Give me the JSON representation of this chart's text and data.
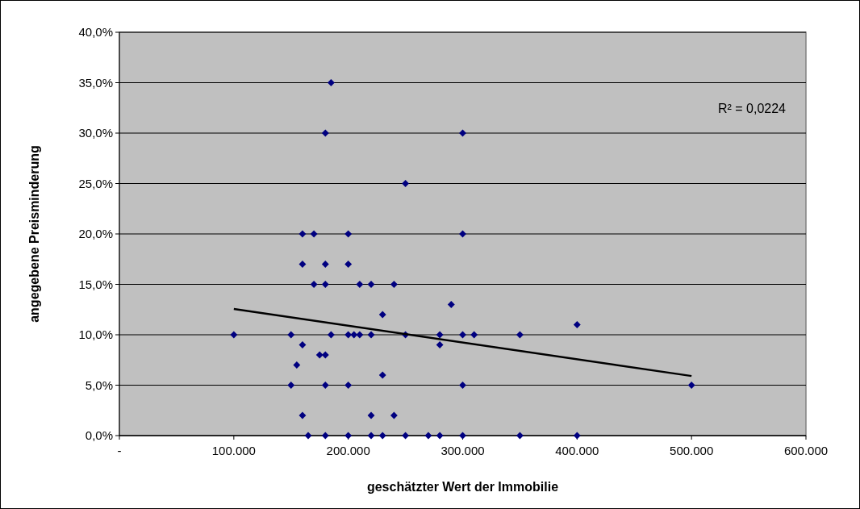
{
  "chart_data": {
    "type": "scatter",
    "xlabel": "geschätzter Wert der Immobilie",
    "ylabel": "angegebene Preisminderung",
    "xlim": [
      0,
      600000
    ],
    "xticks": [
      {
        "value": 0,
        "label": "-"
      },
      {
        "value": 100000,
        "label": "100.000"
      },
      {
        "value": 200000,
        "label": "200.000"
      },
      {
        "value": 300000,
        "label": "300.000"
      },
      {
        "value": 400000,
        "label": "400.000"
      },
      {
        "value": 500000,
        "label": "500.000"
      },
      {
        "value": 600000,
        "label": "600.000"
      }
    ],
    "ylim": [
      0,
      40
    ],
    "yticks": [
      {
        "value": 0,
        "label": "0,0%"
      },
      {
        "value": 5,
        "label": "5,0%"
      },
      {
        "value": 10,
        "label": "10,0%"
      },
      {
        "value": 15,
        "label": "15,0%"
      },
      {
        "value": 20,
        "label": "20,0%"
      },
      {
        "value": 25,
        "label": "25,0%"
      },
      {
        "value": 30,
        "label": "30,0%"
      },
      {
        "value": 35,
        "label": "35,0%"
      },
      {
        "value": 40,
        "label": "40,0%"
      }
    ],
    "grid": "y",
    "marker": "diamond",
    "series": [
      {
        "color": "#000080",
        "x": [
          185000,
          180000,
          300000,
          250000,
          160000,
          170000,
          200000,
          300000,
          160000,
          180000,
          200000,
          170000,
          180000,
          210000,
          220000,
          240000,
          290000,
          230000,
          100000,
          150000,
          185000,
          200000,
          205000,
          210000,
          220000,
          250000,
          280000,
          300000,
          310000,
          350000,
          400000,
          160000,
          280000,
          175000,
          180000,
          155000,
          230000,
          150000,
          180000,
          200000,
          300000,
          500000,
          160000,
          220000,
          240000,
          165000,
          180000,
          200000,
          220000,
          230000,
          250000,
          270000,
          280000,
          300000,
          350000,
          400000
        ],
        "values": [
          35,
          30,
          30,
          25,
          20,
          20,
          20,
          20,
          17,
          17,
          17,
          15,
          15,
          15,
          15,
          15,
          13,
          12,
          10,
          10,
          10,
          10,
          10,
          10,
          10,
          10,
          10,
          10,
          10,
          10,
          11,
          9,
          9,
          8,
          8,
          7,
          6,
          5,
          5,
          5,
          5,
          5,
          2,
          2,
          2,
          0,
          0,
          0,
          0,
          0,
          0,
          0,
          0,
          0,
          0,
          0
        ]
      },
      {
        "type": "line",
        "color": "#000000",
        "x": [
          100000,
          500000
        ],
        "values": [
          12.56,
          5.91
        ],
        "marker": "none"
      }
    ],
    "annotations": [
      "R² = 0,0224"
    ]
  }
}
